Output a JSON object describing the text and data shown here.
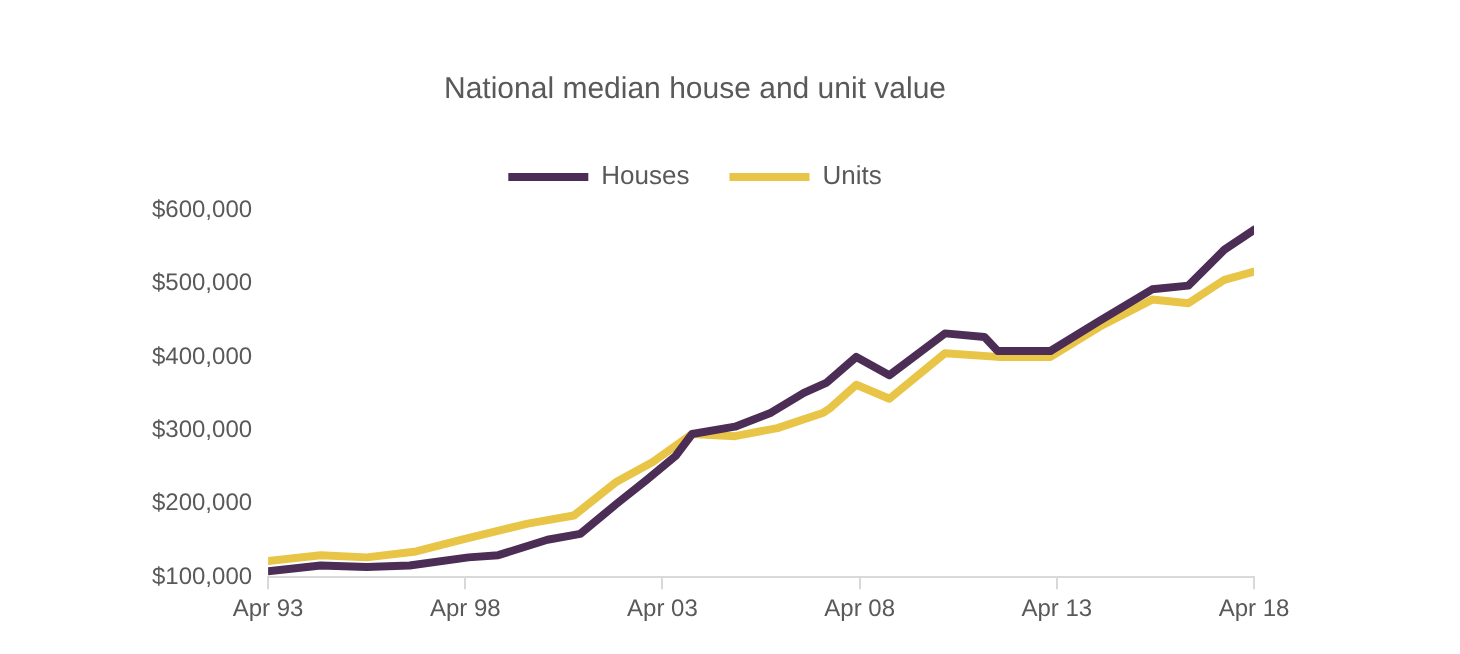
{
  "chart_data": {
    "type": "line",
    "title": "National median house and unit value",
    "series": [
      {
        "name": "Houses",
        "color": "#4b2d55",
        "x": [
          "1993-04",
          "1994-08",
          "1995-10",
          "1996-11",
          "1998-05",
          "1999-02",
          "2000-05",
          "2001-03",
          "2002-02",
          "2002-11",
          "2003-08",
          "2004-01",
          "2005-02",
          "2006-01",
          "2006-11",
          "2007-06",
          "2008-03",
          "2009-01",
          "2010-06",
          "2011-06",
          "2011-10",
          "2013-02",
          "2014-05",
          "2015-09",
          "2016-08",
          "2017-07",
          "2018-04"
        ],
        "values": [
          108000,
          116000,
          114000,
          116000,
          127000,
          130000,
          151000,
          159000,
          200000,
          232000,
          265000,
          295000,
          305000,
          324000,
          351000,
          365000,
          400000,
          375000,
          432000,
          427000,
          408000,
          408000,
          449000,
          492000,
          497000,
          546000,
          573000
        ]
      },
      {
        "name": "Units",
        "color": "#e8c547",
        "x": [
          "1993-04",
          "1994-08",
          "1995-10",
          "1997-01",
          "1998-03",
          "1999-11",
          "2001-01",
          "2002-02",
          "2003-01",
          "2004-01",
          "2005-02",
          "2006-03",
          "2007-05",
          "2007-07",
          "2008-03",
          "2009-01",
          "2010-06",
          "2011-10",
          "2013-02",
          "2014-05",
          "2015-09",
          "2016-08",
          "2017-07",
          "2018-04"
        ],
        "values": [
          122000,
          130000,
          127000,
          135000,
          151000,
          173000,
          184000,
          230000,
          257000,
          295000,
          292000,
          303000,
          324000,
          330000,
          362000,
          343000,
          405000,
          400000,
          400000,
          441000,
          478000,
          473000,
          505000,
          516000
        ]
      }
    ],
    "xlim": [
      "1993-04",
      "2018-04"
    ],
    "xticks": [
      {
        "value": "1993-04",
        "label": "Apr 93"
      },
      {
        "value": "1998-04",
        "label": "Apr 98"
      },
      {
        "value": "2003-04",
        "label": "Apr 03"
      },
      {
        "value": "2008-04",
        "label": "Apr 08"
      },
      {
        "value": "2013-04",
        "label": "Apr 13"
      },
      {
        "value": "2018-04",
        "label": "Apr 18"
      }
    ],
    "ylim": [
      100000,
      600000
    ],
    "yticks": [
      {
        "value": 100000,
        "label": "$100,000"
      },
      {
        "value": 200000,
        "label": "$200,000"
      },
      {
        "value": 300000,
        "label": "$300,000"
      },
      {
        "value": 400000,
        "label": "$400,000"
      },
      {
        "value": 500000,
        "label": "$500,000"
      },
      {
        "value": 600000,
        "label": "$600,000"
      }
    ],
    "grid": false,
    "legend": "top",
    "marker": "none",
    "line_style": "solid"
  }
}
